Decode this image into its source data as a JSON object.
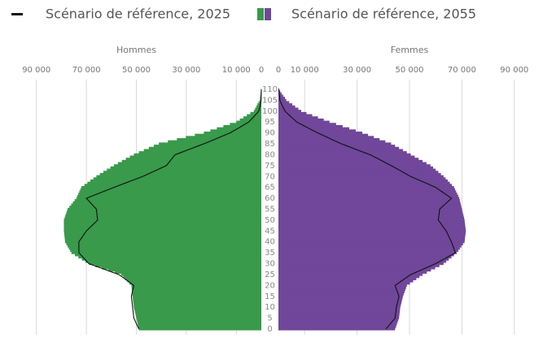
{
  "chart_data": {
    "type": "pyramid",
    "series": [
      {
        "name": "Scénario de référence, 2025",
        "type": "line",
        "color": "#111111"
      },
      {
        "name": "Scénario de référence, 2055",
        "type": "bar",
        "colors": [
          "#389a4a",
          "#70479a"
        ]
      }
    ],
    "categories": [
      "0",
      null,
      null,
      null,
      null,
      "5",
      null,
      null,
      null,
      null,
      "10",
      null,
      null,
      null,
      null,
      "15",
      null,
      null,
      null,
      null,
      "20",
      null,
      null,
      null,
      null,
      "25",
      null,
      null,
      null,
      null,
      "30",
      null,
      null,
      null,
      null,
      "35",
      null,
      null,
      null,
      null,
      "40",
      null,
      null,
      null,
      null,
      "45",
      null,
      null,
      null,
      null,
      "50",
      null,
      null,
      null,
      null,
      "55",
      null,
      null,
      null,
      null,
      "60",
      null,
      null,
      null,
      null,
      "65",
      null,
      null,
      null,
      null,
      "70",
      null,
      null,
      null,
      null,
      "75",
      null,
      null,
      null,
      null,
      "80",
      null,
      null,
      null,
      null,
      "85",
      null,
      null,
      null,
      null,
      "90",
      null,
      null,
      null,
      null,
      "95",
      null,
      null,
      null,
      null,
      "100",
      null,
      null,
      null,
      null,
      "105",
      null,
      null,
      null,
      null,
      "110"
    ],
    "panels": [
      {
        "title": "Hommes",
        "side": "left",
        "color": "#389a4a",
        "line_color": "#111111",
        "xlim": [
          0,
          100000
        ],
        "xticks": [
          {
            "value": 90000,
            "label": "90 000"
          },
          {
            "value": 70000,
            "label": "70 000"
          },
          {
            "value": 50000,
            "label": "50 000"
          },
          {
            "value": 30000,
            "label": "30 000"
          },
          {
            "value": 10000,
            "label": "10 000"
          },
          0
        ],
        "bars": [
          49000,
          49200,
          49400,
          49600,
          49800,
          50000,
          50200,
          50400,
          50600,
          50800,
          51000,
          51100,
          51200,
          51300,
          51400,
          51500,
          51600,
          51700,
          51800,
          51900,
          52000,
          52800,
          53600,
          54400,
          55200,
          56000,
          58600,
          61200,
          63800,
          66400,
          69000,
          70400,
          71800,
          73200,
          74600,
          76000,
          76500,
          77000,
          77500,
          78000,
          78500,
          78600,
          78700,
          78800,
          78900,
          79000,
          79000,
          79000,
          79000,
          79000,
          79000,
          78700,
          78400,
          78100,
          77800,
          77500,
          76800,
          76100,
          75400,
          74700,
          74000,
          73600,
          73200,
          72800,
          72400,
          72000,
          70800,
          69600,
          68400,
          67200,
          66000,
          64600,
          63200,
          61800,
          60400,
          59000,
          57400,
          55800,
          54200,
          52600,
          51000,
          49000,
          47000,
          45000,
          43000,
          41000,
          37400,
          33800,
          30200,
          26600,
          23000,
          20400,
          17800,
          15200,
          12600,
          10000,
          8600,
          7200,
          5800,
          4400,
          3000,
          2500,
          2000,
          1600,
          1100,
          600,
          500,
          400,
          300,
          200,
          100
        ],
        "line": [
          49000,
          49400,
          49800,
          50200,
          50600,
          51000,
          51100,
          51200,
          51300,
          51400,
          51500,
          51600,
          51700,
          51800,
          51900,
          52000,
          51800,
          51600,
          51400,
          51200,
          51000,
          52200,
          53400,
          54600,
          55800,
          57000,
          59400,
          61800,
          64200,
          66600,
          69000,
          69800,
          70600,
          71400,
          72200,
          73000,
          73000,
          73000,
          73000,
          73000,
          73000,
          72400,
          71800,
          71200,
          70600,
          70000,
          69100,
          68200,
          67300,
          66400,
          65500,
          65600,
          65700,
          65800,
          65900,
          66000,
          66800,
          67600,
          68400,
          69200,
          70000,
          67800,
          65600,
          63400,
          61200,
          59000,
          56700,
          54400,
          52100,
          49800,
          47500,
          45600,
          43700,
          41800,
          39900,
          38000,
          37300,
          36600,
          35900,
          35200,
          34500,
          32200,
          29900,
          27600,
          25300,
          23000,
          20900,
          18800,
          16700,
          14600,
          12500,
          11000,
          9500,
          8000,
          6500,
          5000,
          4200,
          3400,
          2600,
          1800,
          1000,
          800,
          600,
          400,
          200,
          100,
          80,
          60,
          40,
          20,
          0
        ]
      },
      {
        "title": "Femmes",
        "side": "right",
        "color": "#70479a",
        "line_color": "#111111",
        "xlim": [
          0,
          100000
        ],
        "xticks": [
          0,
          {
            "value": 10000,
            "label": "10 000"
          },
          {
            "value": 30000,
            "label": "30 000"
          },
          {
            "value": 50000,
            "label": "50 000"
          },
          {
            "value": 70000,
            "label": "70 000"
          },
          {
            "value": 90000,
            "label": "90 000"
          }
        ],
        "bars": [
          44500,
          44800,
          45100,
          45400,
          45700,
          46000,
          46100,
          46200,
          46300,
          46400,
          46500,
          46700,
          46900,
          47100,
          47300,
          47500,
          47800,
          48100,
          48400,
          48700,
          49000,
          50200,
          51400,
          52600,
          53800,
          55000,
          56600,
          58200,
          59800,
          61400,
          63000,
          64000,
          65000,
          66000,
          67000,
          68000,
          68600,
          69200,
          69800,
          70400,
          71000,
          71100,
          71200,
          71300,
          71400,
          71500,
          71400,
          71300,
          71200,
          71100,
          71000,
          70800,
          70600,
          70400,
          70200,
          70000,
          69800,
          69600,
          69400,
          69200,
          69000,
          68600,
          68200,
          67800,
          67400,
          67000,
          66200,
          65400,
          64600,
          63800,
          63000,
          62000,
          61000,
          60000,
          59000,
          58000,
          56500,
          55000,
          53500,
          52000,
          50500,
          49000,
          47500,
          46000,
          44500,
          43000,
          40800,
          38600,
          36400,
          34200,
          32000,
          29500,
          27000,
          24500,
          22000,
          19500,
          17300,
          15100,
          12900,
          10700,
          8700,
          7600,
          6400,
          5300,
          4100,
          3000,
          2500,
          1800,
          1200,
          700,
          300
        ],
        "line": [
          41000,
          41700,
          42400,
          43100,
          43800,
          44500,
          44600,
          44700,
          44800,
          44900,
          45000,
          45200,
          45400,
          45600,
          45800,
          46000,
          45700,
          45400,
          45100,
          44800,
          44500,
          45700,
          46900,
          48100,
          49300,
          50500,
          52400,
          54300,
          56200,
          58100,
          60000,
          61500,
          63000,
          64500,
          66000,
          67500,
          67200,
          66900,
          66600,
          66300,
          66000,
          65600,
          65200,
          64800,
          64400,
          64000,
          63400,
          62800,
          62200,
          61600,
          61000,
          61100,
          61200,
          61300,
          61400,
          61500,
          62400,
          63300,
          64200,
          65100,
          66000,
          64800,
          63600,
          62400,
          61200,
          60000,
          58100,
          56200,
          54300,
          52400,
          50500,
          49000,
          47500,
          46000,
          44500,
          43000,
          41400,
          39800,
          38200,
          36600,
          35000,
          32800,
          30600,
          28400,
          26200,
          24000,
          22200,
          20400,
          18600,
          16800,
          15000,
          13400,
          11800,
          10200,
          8600,
          7000,
          6100,
          5200,
          4300,
          3400,
          2500,
          2100,
          1700,
          1300,
          900,
          600,
          500,
          400,
          300,
          200,
          100
        ]
      }
    ]
  }
}
